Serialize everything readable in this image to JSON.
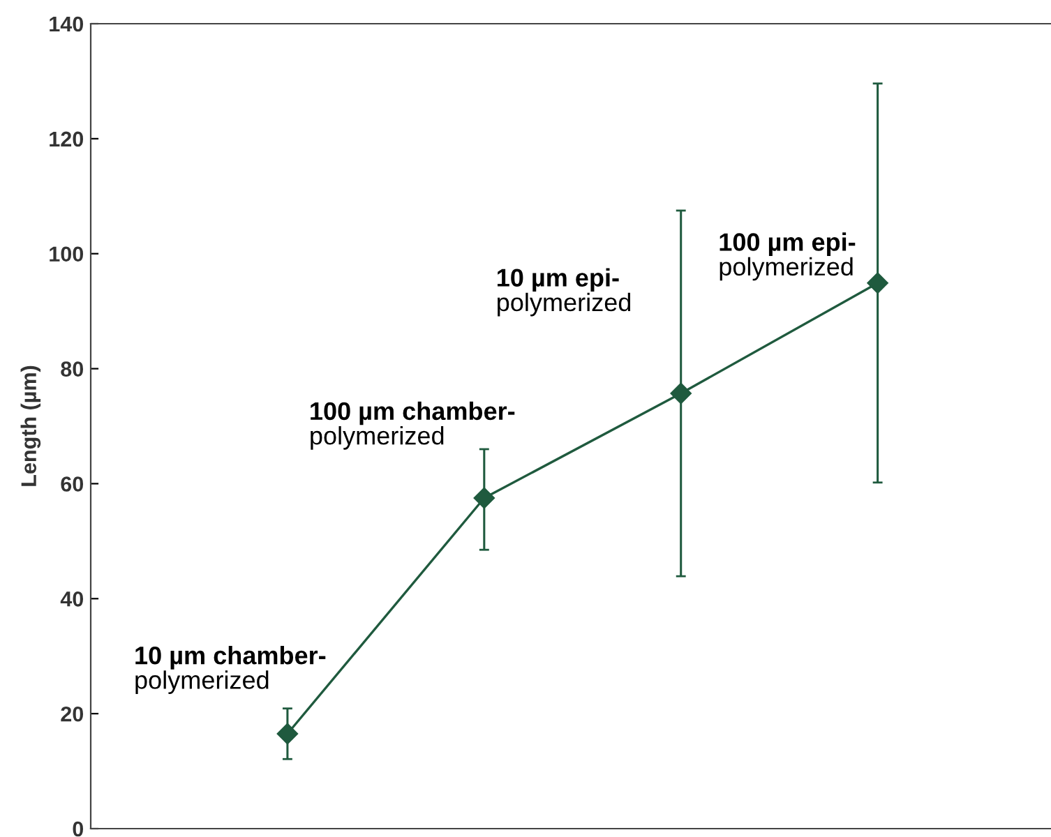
{
  "chart_data": {
    "type": "line",
    "ylabel": "Length (µm)",
    "categories": [
      null,
      null,
      null,
      null
    ],
    "series": [
      {
        "color": "#1f5a3e",
        "values": [
          16.5,
          57.5,
          75.7,
          94.9
        ],
        "errors": [
          [
            12.1,
            20.9
          ],
          [
            48.5,
            66.0
          ],
          [
            43.9,
            107.5
          ],
          [
            60.2,
            129.6
          ]
        ]
      }
    ],
    "annotations": [
      "10 µm chamber-\npolymerized",
      "100 µm chamber-\npolymerized",
      "10 µm epi-\npolymerized",
      "100 µm epi-\npolymerized"
    ],
    "ylim": [
      0,
      140
    ],
    "yticks": [
      0,
      20,
      40,
      60,
      80,
      100,
      120,
      140
    ],
    "marker": "diamond",
    "line_style": "solid",
    "grid": false,
    "legend": false
  }
}
